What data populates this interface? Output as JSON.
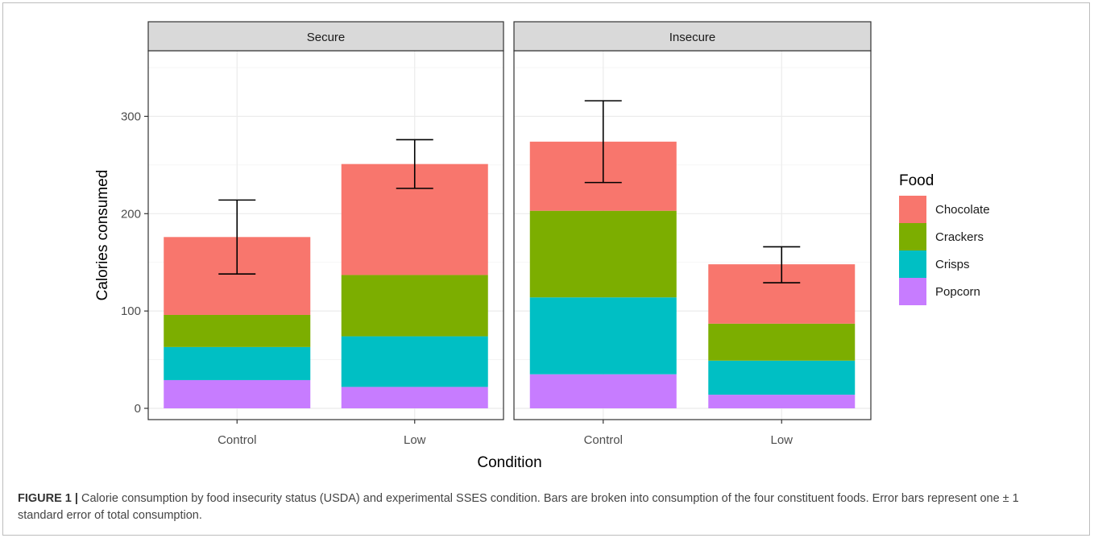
{
  "chart_data": {
    "type": "bar",
    "stacked": true,
    "facets": [
      {
        "name": "Secure",
        "categories": [
          "Control",
          "Low"
        ],
        "series": [
          {
            "name": "Popcorn",
            "values": [
              29,
              22
            ]
          },
          {
            "name": "Crisps",
            "values": [
              34,
              52
            ]
          },
          {
            "name": "Crackers",
            "values": [
              33,
              63
            ]
          },
          {
            "name": "Chocolate",
            "values": [
              80,
              114
            ]
          }
        ],
        "totals": [
          176,
          251
        ],
        "error_bars": [
          [
            138,
            214
          ],
          [
            226,
            276
          ]
        ]
      },
      {
        "name": "Insecure",
        "categories": [
          "Control",
          "Low"
        ],
        "series": [
          {
            "name": "Popcorn",
            "values": [
              35,
              14
            ]
          },
          {
            "name": "Crisps",
            "values": [
              79,
              35
            ]
          },
          {
            "name": "Crackers",
            "values": [
              89,
              38
            ]
          },
          {
            "name": "Chocolate",
            "values": [
              71,
              61
            ]
          }
        ],
        "totals": [
          274,
          148
        ],
        "error_bars": [
          [
            232,
            316
          ],
          [
            129,
            166
          ]
        ]
      }
    ],
    "xlabel": "Condition",
    "ylabel": "Calories consumed",
    "ylim": [
      -10,
      375
    ],
    "yticks": [
      0,
      100,
      200,
      300
    ],
    "legend": {
      "title": "Food",
      "placement": "right",
      "entries": [
        "Chocolate",
        "Crackers",
        "Crisps",
        "Popcorn"
      ]
    },
    "colors": {
      "Chocolate": "#F8766D",
      "Crackers": "#7CAE00",
      "Crisps": "#00BFC4",
      "Popcorn": "#C77CFF"
    },
    "grid": true
  },
  "caption": {
    "label": "FIGURE 1 |",
    "text": " Calorie consumption by food insecurity status (USDA) and experimental SSES condition. Bars are broken into consumption of the four constituent foods. Error bars represent one ± 1 standard error of total consumption."
  }
}
